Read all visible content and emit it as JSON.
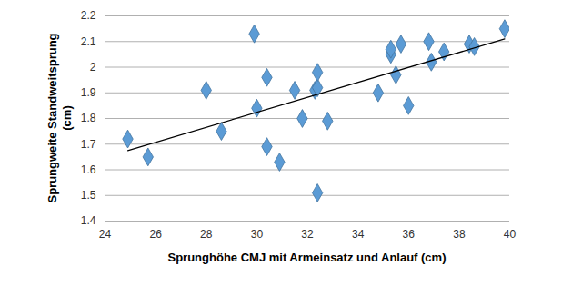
{
  "chart_data": {
    "type": "scatter",
    "xlabel": "Sprunghöhe CMJ mit Armeinsatz und Anlauf (cm)",
    "ylabel": "Sprungweite Standweitsprung (cm)",
    "xlim": [
      24,
      40
    ],
    "xticks": [
      24,
      26,
      28,
      30,
      32,
      34,
      36,
      38,
      40
    ],
    "ylim": [
      1.4,
      2.2
    ],
    "yticks": [
      1.4,
      1.5,
      1.6,
      1.7,
      1.8,
      1.9,
      2,
      2.1,
      2.2
    ],
    "grid": true,
    "series": [
      {
        "type": "scatter",
        "marker": "diamond",
        "color": "#5b9bd5",
        "x": [
          24.9,
          25.7,
          28.0,
          28.6,
          29.9,
          30.0,
          30.4,
          30.4,
          30.9,
          31.5,
          31.8,
          32.3,
          32.4,
          32.4,
          32.4,
          32.8,
          34.8,
          35.3,
          35.3,
          35.5,
          35.7,
          36.0,
          36.8,
          36.9,
          37.4,
          38.4,
          38.6,
          39.8
        ],
        "values": [
          1.72,
          1.65,
          1.91,
          1.75,
          2.13,
          1.84,
          1.96,
          1.69,
          1.63,
          1.91,
          1.8,
          1.91,
          1.92,
          1.98,
          1.51,
          1.79,
          1.9,
          2.05,
          2.07,
          1.97,
          2.09,
          1.85,
          2.1,
          2.02,
          2.06,
          2.09,
          2.08,
          2.15
        ]
      },
      {
        "type": "line",
        "line_style": "solid",
        "color": "#000000",
        "x": [
          24.9,
          39.8
        ],
        "values": [
          1.675,
          2.11
        ]
      }
    ]
  }
}
